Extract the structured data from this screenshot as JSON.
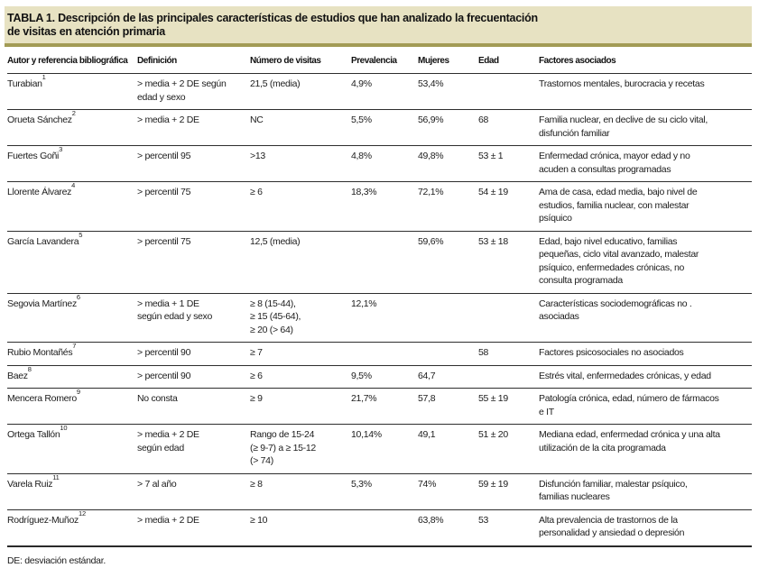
{
  "title": "TABLA 1. Descripción de las principales características de estudios que han analizado la frecuentación\nde visitas en atención primaria",
  "columns": [
    "Autor y referencia bibliográfica",
    "Definición",
    "Número de visitas",
    "Prevalencia",
    "Mujeres",
    "Edad",
    "Factores asociados"
  ],
  "rows": [
    {
      "author": "Turabian",
      "ref": "1",
      "definicion": "> media + 2 DE según\nedad y sexo",
      "visitas": "21,5 (media)",
      "prevalencia": "4,9%",
      "mujeres": "53,4%",
      "edad": "",
      "factores": "Trastornos mentales, burocracia y recetas"
    },
    {
      "author": "Orueta Sánchez",
      "ref": "2",
      "definicion": "> media + 2 DE",
      "visitas": "NC",
      "prevalencia": "5,5%",
      "mujeres": "56,9%",
      "edad": "68",
      "factores": "Familia nuclear, en declive de su ciclo vital,\ndisfunción familiar"
    },
    {
      "author": "Fuertes Goñi",
      "ref": "3",
      "definicion": "> percentil 95",
      "visitas": ">13",
      "prevalencia": "4,8%",
      "mujeres": "49,8%",
      "edad": "53 ± 1",
      "factores": "Enfermedad crónica, mayor edad y no\nacuden a consultas programadas"
    },
    {
      "author": "Llorente Álvarez",
      "ref": "4",
      "definicion": "> percentil 75",
      "visitas": "≥ 6",
      "prevalencia": "18,3%",
      "mujeres": "72,1%",
      "edad": "54 ± 19",
      "factores": "Ama de casa, edad media, bajo nivel de\nestudios, familia nuclear, con malestar\npsíquico"
    },
    {
      "author": "García Lavandera",
      "ref": "5",
      "definicion": "> percentil 75",
      "visitas": "12,5 (media)",
      "prevalencia": "",
      "mujeres": "59,6%",
      "edad": "53 ± 18",
      "factores": "Edad, bajo nivel educativo, familias\npequeñas, ciclo vital avanzado, malestar\npsíquico, enfermedades crónicas, no\nconsulta programada"
    },
    {
      "author": "Segovia Martínez",
      "ref": "6",
      "definicion": "> media + 1 DE\nsegún edad y sexo",
      "visitas": "≥ 8 (15-44),\n≥ 15 (45-64),\n≥ 20 (> 64)",
      "prevalencia": "12,1%",
      "mujeres": "",
      "edad": "",
      "factores": "Características sociodemográficas no .\nasociadas"
    },
    {
      "author": "Rubio Montañés",
      "ref": "7",
      "definicion": "> percentil 90",
      "visitas": "≥ 7",
      "prevalencia": "",
      "mujeres": "",
      "edad": "58",
      "factores": "Factores psicosociales no asociados"
    },
    {
      "author": "Baez",
      "ref": "8",
      "definicion": "> percentil 90",
      "visitas": "≥ 6",
      "prevalencia": "9,5%",
      "mujeres": "64,7",
      "edad": "",
      "factores": "Estrés vital, enfermedades crónicas, y edad"
    },
    {
      "author": "Mencera Romero",
      "ref": "9",
      "definicion": "No consta",
      "visitas": "≥ 9",
      "prevalencia": "21,7%",
      "mujeres": "57,8",
      "edad": "55 ± 19",
      "factores": "Patología crónica, edad, número de fármacos\ne IT"
    },
    {
      "author": "Ortega Tallón",
      "ref": "10",
      "definicion": "> media + 2 DE\nsegún edad",
      "visitas": "Rango de 15-24\n(≥ 9-7) a ≥ 15-12\n(> 74)",
      "prevalencia": "10,14%",
      "mujeres": "49,1",
      "edad": "51 ± 20",
      "factores": "Mediana edad, enfermedad crónica y una alta\nutilización de la cita programada"
    },
    {
      "author": "Varela Ruiz",
      "ref": "11",
      "definicion": "> 7 al año",
      "visitas": "≥ 8",
      "prevalencia": "5,3%",
      "mujeres": "74%",
      "edad": "59 ± 19",
      "factores": "Disfunción familiar, malestar psíquico,\nfamilias nucleares"
    },
    {
      "author": "Rodríguez-Muñoz",
      "ref": "12",
      "definicion": "> media + 2 DE",
      "visitas": "≥ 10",
      "prevalencia": "",
      "mujeres": "63,8%",
      "edad": "53",
      "factores": "Alta prevalencia de trastornos de la\npersonalidad y ansiedad o depresión"
    }
  ],
  "footnote": "DE: desviación estándar.",
  "colors": {
    "banner_bg": "#e7e2c2",
    "banner_rule": "#a29b55",
    "rule": "#2e2e2e",
    "text": "#1c1c1c"
  }
}
